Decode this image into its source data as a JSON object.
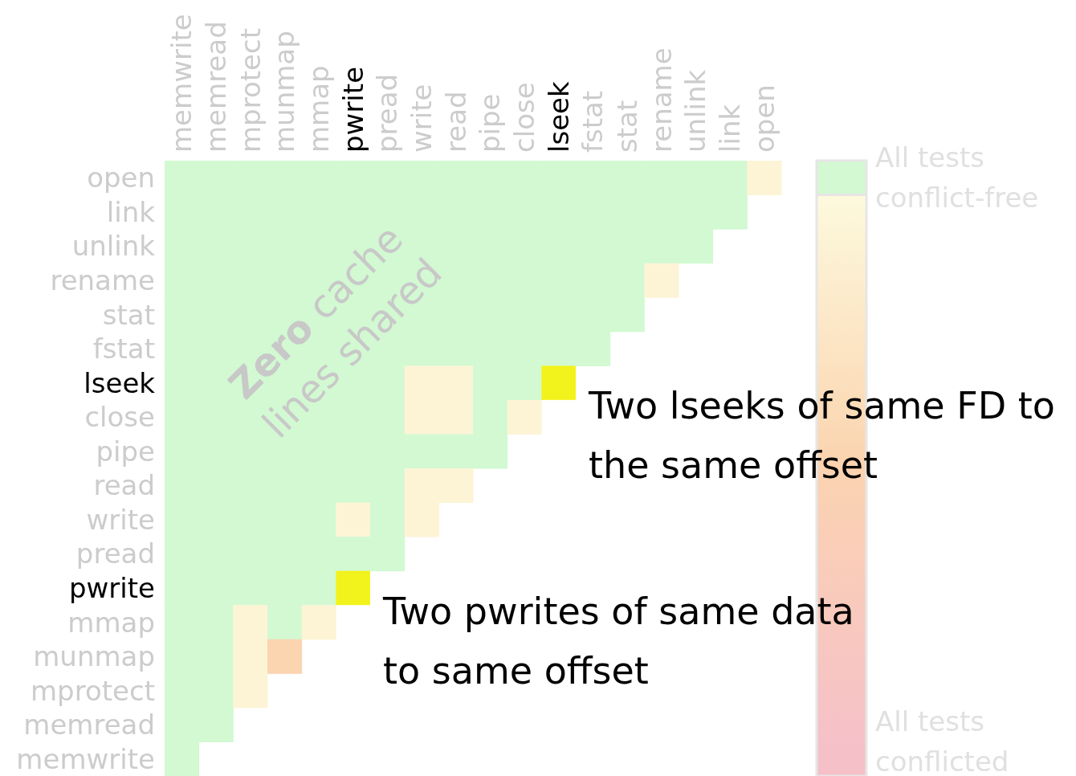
{
  "chart_data": {
    "type": "heatmap",
    "categories": [
      "memwrite",
      "memread",
      "mprotect",
      "munmap",
      "mmap",
      "pwrite",
      "pread",
      "write",
      "read",
      "pipe",
      "close",
      "lseek",
      "fstat",
      "stat",
      "rename",
      "unlink",
      "link",
      "open"
    ],
    "y_categories": [
      "open",
      "link",
      "unlink",
      "rename",
      "stat",
      "fstat",
      "lseek",
      "close",
      "pipe",
      "read",
      "write",
      "pread",
      "pwrite",
      "mmap",
      "munmap",
      "mprotect",
      "memread",
      "memwrite"
    ],
    "cells": [
      [
        0,
        0,
        0,
        0,
        0,
        0,
        0,
        0,
        0,
        0,
        0,
        0,
        0,
        0,
        0,
        0,
        0,
        0.1
      ],
      [
        0,
        0,
        0,
        0,
        0,
        0,
        0,
        0,
        0,
        0,
        0,
        0,
        0,
        0,
        0,
        0,
        0,
        null
      ],
      [
        0,
        0,
        0,
        0,
        0,
        0,
        0,
        0,
        0,
        0,
        0,
        0,
        0,
        0,
        0,
        0,
        null,
        null
      ],
      [
        0,
        0,
        0,
        0,
        0,
        0,
        0,
        0,
        0,
        0,
        0,
        0,
        0,
        0,
        0.1,
        null,
        null,
        null
      ],
      [
        0,
        0,
        0,
        0,
        0,
        0,
        0,
        0,
        0,
        0,
        0,
        0,
        0,
        0,
        null,
        null,
        null,
        null
      ],
      [
        0,
        0,
        0,
        0,
        0,
        0,
        0,
        0,
        0,
        0,
        0,
        0,
        0,
        null,
        null,
        null,
        null,
        null
      ],
      [
        0,
        0,
        0,
        0,
        0,
        0,
        0,
        0.1,
        0.1,
        0,
        0,
        null,
        null,
        null,
        null,
        null,
        null,
        null
      ],
      [
        0,
        0,
        0,
        0,
        0,
        0,
        0,
        0.1,
        0.1,
        0,
        0.1,
        null,
        null,
        null,
        null,
        null,
        null,
        null
      ],
      [
        0,
        0,
        0,
        0,
        0,
        0,
        0,
        0,
        0,
        0,
        null,
        null,
        null,
        null,
        null,
        null,
        null,
        null
      ],
      [
        0,
        0,
        0,
        0,
        0,
        0,
        0,
        0.1,
        0.1,
        null,
        null,
        null,
        null,
        null,
        null,
        null,
        null,
        null
      ],
      [
        0,
        0,
        0,
        0,
        0,
        0.1,
        0,
        0.1,
        null,
        null,
        null,
        null,
        null,
        null,
        null,
        null,
        null,
        null
      ],
      [
        0,
        0,
        0,
        0,
        0,
        0,
        0,
        null,
        null,
        null,
        null,
        null,
        null,
        null,
        null,
        null,
        null,
        null
      ],
      [
        0,
        0,
        0,
        0,
        0,
        null,
        null,
        null,
        null,
        null,
        null,
        null,
        null,
        null,
        null,
        null,
        null,
        null
      ],
      [
        0,
        0,
        0.1,
        0,
        0.1,
        null,
        null,
        null,
        null,
        null,
        null,
        null,
        null,
        null,
        null,
        null,
        null,
        null
      ],
      [
        0,
        0,
        0.1,
        0.5,
        null,
        null,
        null,
        null,
        null,
        null,
        null,
        null,
        null,
        null,
        null,
        null,
        null,
        null
      ],
      [
        0,
        0,
        0.1,
        null,
        null,
        null,
        null,
        null,
        null,
        null,
        null,
        null,
        null,
        null,
        null,
        null,
        null,
        null
      ],
      [
        0,
        0,
        null,
        null,
        null,
        null,
        null,
        null,
        null,
        null,
        null,
        null,
        null,
        null,
        null,
        null,
        null,
        null
      ],
      [
        0,
        null,
        null,
        null,
        null,
        null,
        null,
        null,
        null,
        null,
        null,
        null,
        null,
        null,
        null,
        null,
        null,
        null
      ]
    ],
    "clim": [
      0,
      1
    ],
    "cticks": [
      {
        "value": 0,
        "label": "All tests conflict-free"
      },
      {
        "value": 1,
        "label": "All tests conflicted"
      }
    ],
    "annotations": [
      "Zero cache lines shared",
      "Two lseeks of same FD to the same offset",
      "Two pwrites of same data to same offset"
    ]
  }
}
